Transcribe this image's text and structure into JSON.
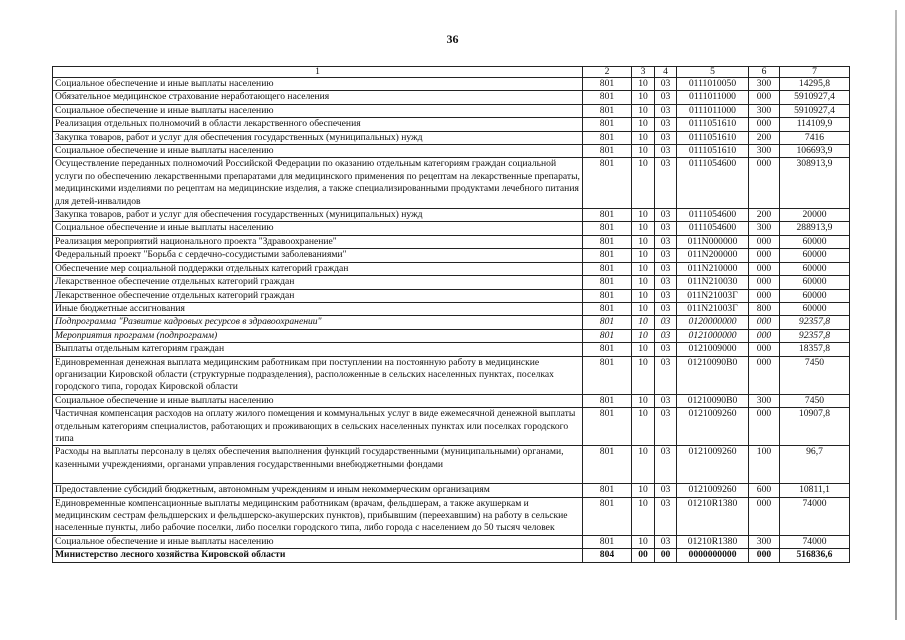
{
  "page_number": "36",
  "table": {
    "headers": [
      "1",
      "2",
      "3",
      "4",
      "5",
      "6",
      "7"
    ],
    "rows": [
      {
        "name": "Социальное обеспечение и иные выплаты населению",
        "c2": "801",
        "c3": "10",
        "c4": "03",
        "c5": "0111010050",
        "c6": "300",
        "c7": "14295,8"
      },
      {
        "name": "Обязательное медицинское страхование неработающего населения",
        "c2": "801",
        "c3": "10",
        "c4": "03",
        "c5": "0111011000",
        "c6": "000",
        "c7": "5910927,4"
      },
      {
        "name": "Социальное обеспечение и иные выплаты населению",
        "c2": "801",
        "c3": "10",
        "c4": "03",
        "c5": "0111011000",
        "c6": "300",
        "c7": "5910927,4"
      },
      {
        "name": "Реализация отдельных полномочий в области лекарственного обеспечения",
        "c2": "801",
        "c3": "10",
        "c4": "03",
        "c5": "0111051610",
        "c6": "000",
        "c7": "114109,9"
      },
      {
        "name": "Закупка товаров, работ и услуг для обеспечения государственных (муниципальных) нужд",
        "c2": "801",
        "c3": "10",
        "c4": "03",
        "c5": "0111051610",
        "c6": "200",
        "c7": "7416"
      },
      {
        "name": "Социальное обеспечение и иные выплаты населению",
        "c2": "801",
        "c3": "10",
        "c4": "03",
        "c5": "0111051610",
        "c6": "300",
        "c7": "106693,9"
      },
      {
        "name": "Осуществление переданных полномочий Российской Федерации по оказанию отдельным категориям граждан социальной услуги по обеспечению лекарственными препаратами для медицинского применения по рецептам на лекарственные препараты, медицинскими изделиями по рецептам на медицинские изделия, а также специализированными продуктами лечебного питания для детей-инвалидов",
        "c2": "801",
        "c3": "10",
        "c4": "03",
        "c5": "0111054600",
        "c6": "000",
        "c7": "308913,9"
      },
      {
        "name": "Закупка товаров, работ и услуг для обеспечения государственных (муниципальных) нужд",
        "c2": "801",
        "c3": "10",
        "c4": "03",
        "c5": "0111054600",
        "c6": "200",
        "c7": "20000"
      },
      {
        "name": "Социальное обеспечение и иные выплаты населению",
        "c2": "801",
        "c3": "10",
        "c4": "03",
        "c5": "0111054600",
        "c6": "300",
        "c7": "288913,9"
      },
      {
        "name": "Реализация мероприятий национального проекта \"Здравоохранение\"",
        "c2": "801",
        "c3": "10",
        "c4": "03",
        "c5": "011N000000",
        "c6": "000",
        "c7": "60000"
      },
      {
        "name": "Федеральный проект \"Борьба с сердечно-сосудистыми заболеваниями\"",
        "c2": "801",
        "c3": "10",
        "c4": "03",
        "c5": "011N200000",
        "c6": "000",
        "c7": "60000"
      },
      {
        "name": "Обеспечение мер социальной поддержки отдельных категорий граждан",
        "c2": "801",
        "c3": "10",
        "c4": "03",
        "c5": "011N210000",
        "c6": "000",
        "c7": "60000"
      },
      {
        "name": "Лекарственное обеспечение отдельных категорий граждан",
        "c2": "801",
        "c3": "10",
        "c4": "03",
        "c5": "011N210030",
        "c6": "000",
        "c7": "60000"
      },
      {
        "name": "Лекарственное обеспечение отдельных категорий граждан",
        "c2": "801",
        "c3": "10",
        "c4": "03",
        "c5": "011N21003Г",
        "c6": "000",
        "c7": "60000"
      },
      {
        "name": "Иные бюджетные ассигнования",
        "c2": "801",
        "c3": "10",
        "c4": "03",
        "c5": "011N21003Г",
        "c6": "800",
        "c7": "60000"
      },
      {
        "name": "Подпрограмма \"Развитие кадровых ресурсов в здравоохранении\"",
        "c2": "801",
        "c3": "10",
        "c4": "03",
        "c5": "0120000000",
        "c6": "000",
        "c7": "92357,8",
        "style": "italic"
      },
      {
        "name": "Мероприятия программ (подпрограмм)",
        "c2": "801",
        "c3": "10",
        "c4": "03",
        "c5": "0121000000",
        "c6": "000",
        "c7": "92357,8",
        "style": "italic"
      },
      {
        "name": "Выплаты отдельным категориям граждан",
        "c2": "801",
        "c3": "10",
        "c4": "03",
        "c5": "0121009000",
        "c6": "000",
        "c7": "18357,8"
      },
      {
        "name": "Единовременная денежная выплата медицинским работникам при поступлении на постоянную работу в медицинские организации Кировской области (структурные подразделения), расположенные в сельских населенных пунктах, поселках городского типа, городах Кировской области",
        "c2": "801",
        "c3": "10",
        "c4": "03",
        "c5": "01210090В0",
        "c6": "000",
        "c7": "7450"
      },
      {
        "name": "Социальное обеспечение и иные выплаты населению",
        "c2": "801",
        "c3": "10",
        "c4": "03",
        "c5": "01210090В0",
        "c6": "300",
        "c7": "7450"
      },
      {
        "name": "Частичная компенсация расходов на оплату жилого помещения и коммунальных услуг в виде ежемесячной денежной выплаты отдельным категориям специалистов, работающих и проживающих в сельских населенных пунктах или поселках городского типа",
        "c2": "801",
        "c3": "10",
        "c4": "03",
        "c5": "0121009260",
        "c6": "000",
        "c7": "10907,8"
      },
      {
        "name": "Расходы на выплаты персоналу в целях обеспечения выполнения функций государственными (муниципальными) органами, казенными учреждениями, органами управления государственными внебюджетными фондами",
        "c2": "801",
        "c3": "10",
        "c4": "03",
        "c5": "0121009260",
        "c6": "100",
        "c7": "96,7",
        "tall": true
      },
      {
        "name": "Предоставление субсидий бюджетным, автономным учреждениям и иным некоммерческим организациям",
        "c2": "801",
        "c3": "10",
        "c4": "03",
        "c5": "0121009260",
        "c6": "600",
        "c7": "10811,1"
      },
      {
        "name": "Единовременные компенсационные выплаты медицинским работникам (врачам, фельдшерам, а также акушеркам и медицинским сестрам фельдшерских и фельдшерско-акушерских пунктов), прибывшим (переехавшим) на работу в сельские населенные пункты, либо рабочие поселки, либо поселки городского типа, либо города с населением до 50 тысяч человек",
        "c2": "801",
        "c3": "10",
        "c4": "03",
        "c5": "01210R1380",
        "c6": "000",
        "c7": "74000"
      },
      {
        "name": "Социальное обеспечение и иные выплаты населению",
        "c2": "801",
        "c3": "10",
        "c4": "03",
        "c5": "01210R1380",
        "c6": "300",
        "c7": "74000"
      },
      {
        "name": "Министерство лесного хозяйства Кировской области",
        "c2": "804",
        "c3": "00",
        "c4": "00",
        "c5": "0000000000",
        "c6": "000",
        "c7": "516836,6",
        "style": "bold"
      }
    ]
  }
}
